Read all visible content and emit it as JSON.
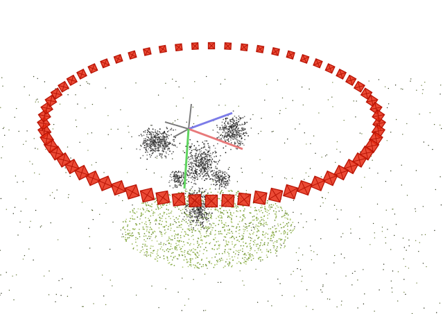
{
  "viewer": {
    "background_color": "#ffffff",
    "camera_color": "#e82a12",
    "camera_edge_color": "#b81405",
    "object_point_colors": [
      "#1a1a1a",
      "#3a3a3a",
      "#555555",
      "#6e6e6e",
      "#8a8a8a"
    ],
    "ground_point_colors": [
      "#8fb04a",
      "#7aa33c",
      "#a6c267",
      "#6b8f2e",
      "#b5cd7d"
    ],
    "scatter_point_colors": [
      "#2f3a18",
      "#4a5a26",
      "#6b7f3a",
      "#1f2410"
    ],
    "axes": {
      "x_axis_color": "#e8797a",
      "y_axis_color": "#5fd45f",
      "z_axis_color": "#7c7ce8",
      "extra_axis_color": "#7a7a7a"
    },
    "camera_ring_icon": "camera-frustum-icon",
    "camera_count": 64
  }
}
